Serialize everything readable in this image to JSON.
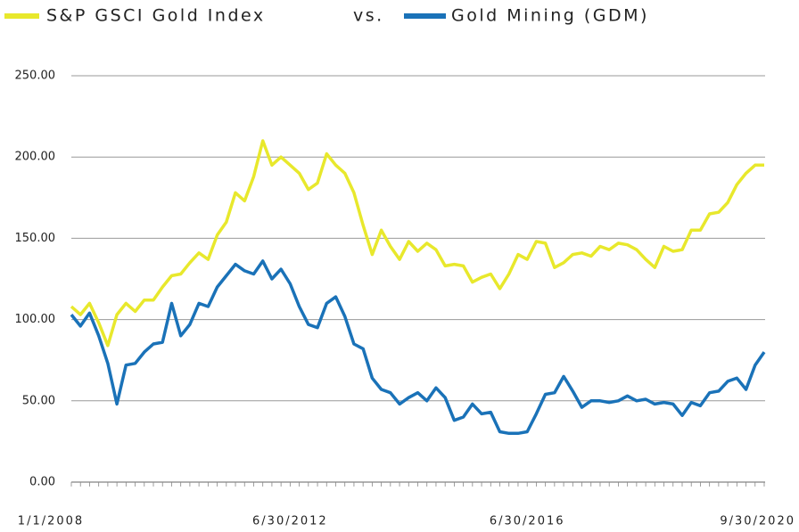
{
  "chart_data": {
    "type": "line",
    "legend_separator": "vs.",
    "legend": "top",
    "grid": true,
    "categories": [
      "1/1/2008",
      null,
      null,
      null,
      null,
      null,
      null,
      null,
      null,
      null,
      null,
      null,
      null,
      null,
      null,
      null,
      null,
      null,
      null,
      null,
      null,
      null,
      null,
      null,
      "6/30/2012",
      null,
      null,
      null,
      null,
      null,
      null,
      null,
      null,
      null,
      null,
      null,
      null,
      null,
      null,
      null,
      null,
      null,
      null,
      null,
      null,
      null,
      null,
      null,
      null,
      null,
      "6/30/2016",
      null,
      null,
      null,
      null,
      null,
      null,
      null,
      null,
      null,
      null,
      null,
      null,
      null,
      null,
      null,
      null,
      null,
      null,
      null,
      null,
      null,
      null,
      null,
      null,
      null,
      "9/30/2020"
    ],
    "series": [
      {
        "name": "S&P GSCI Gold Index",
        "color": "#e8e82c",
        "values": [
          108,
          103,
          110,
          98,
          84,
          103,
          110,
          105,
          112,
          112,
          120,
          127,
          128,
          135,
          141,
          137,
          152,
          160,
          178,
          173,
          188,
          210,
          195,
          200,
          195,
          190,
          180,
          184,
          202,
          195,
          190,
          178,
          158,
          140,
          155,
          145,
          137,
          148,
          142,
          147,
          143,
          133,
          134,
          133,
          123,
          126,
          128,
          119,
          128,
          140,
          137,
          148,
          147,
          132,
          135,
          140,
          141,
          139,
          145,
          143,
          147,
          146,
          143,
          137,
          132,
          145,
          142,
          143,
          155,
          155,
          165,
          166,
          172,
          183,
          190,
          195,
          195
        ]
      },
      {
        "name": "Gold Mining (GDM)",
        "color": "#1a72b8",
        "values": [
          103,
          96,
          104,
          90,
          73,
          48,
          72,
          73,
          80,
          85,
          86,
          110,
          90,
          97,
          110,
          108,
          120,
          127,
          134,
          130,
          128,
          136,
          125,
          131,
          122,
          108,
          97,
          95,
          110,
          114,
          102,
          85,
          82,
          64,
          57,
          55,
          48,
          52,
          55,
          50,
          58,
          52,
          38,
          40,
          48,
          42,
          43,
          31,
          30,
          30,
          31,
          42,
          54,
          55,
          65,
          56,
          46,
          50,
          50,
          49,
          50,
          53,
          50,
          51,
          48,
          49,
          48,
          41,
          49,
          47,
          55,
          56,
          62,
          64,
          57,
          72,
          80
        ]
      }
    ],
    "ylim": [
      0,
      250
    ],
    "yticks": [
      {
        "value": 0,
        "label": "0.00"
      },
      {
        "value": 50,
        "label": "50.00"
      },
      {
        "value": 100,
        "label": "100.00"
      },
      {
        "value": 150,
        "label": "150.00"
      },
      {
        "value": 200,
        "label": "200.00"
      },
      {
        "value": 250,
        "label": "250.00"
      }
    ]
  }
}
